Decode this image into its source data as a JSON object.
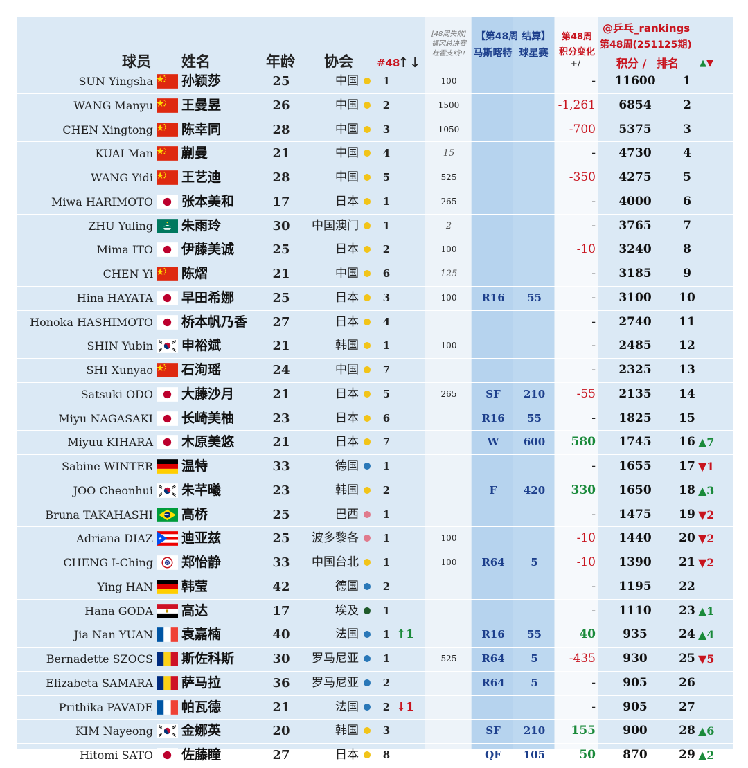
{
  "headers": {
    "player": "球员",
    "name": "姓名",
    "age": "年龄",
    "assoc": "协会",
    "week_rank": "#48",
    "week_arrows": "↑↓",
    "lost_note_1": "[48周失效]",
    "lost_note_2": "福冈总决赛",
    "lost_note_3": "杜霍支线!!",
    "settle_title": "【第48周 结算】",
    "event_1": "马斯喀特",
    "event_2": "球星赛",
    "change_1": "第48周",
    "change_2": "积分变化",
    "change_3": "+/-",
    "handle": "@乒乓_rankings",
    "period": "第48周(251125期)",
    "points": "积分 /",
    "rank": "排名",
    "move_arrows": "▲▼"
  },
  "colors": {
    "gold": "#f2c418",
    "blue": "#2a78b8",
    "pink": "#e07a8c",
    "green": "#1f5a2a",
    "up": "#1a8a3a",
    "down": "#c8141e"
  },
  "players": [
    {
      "en": "SUN Yingsha",
      "flag": "china-flag",
      "cn": "孙颖莎",
      "age": "25",
      "assoc": "中国",
      "dot": "gold",
      "wk": "1",
      "arr": "",
      "prev": "100",
      "prev_it": false,
      "mr": "",
      "mp": "",
      "chg": "-",
      "chg_t": "dash",
      "pts": "11600",
      "rank": "1",
      "mv": ""
    },
    {
      "en": "WANG Manyu",
      "flag": "china-flag",
      "cn": "王曼昱",
      "age": "26",
      "assoc": "中国",
      "dot": "gold",
      "wk": "2",
      "arr": "",
      "prev": "1500",
      "prev_it": false,
      "mr": "",
      "mp": "",
      "chg": "-1,261",
      "chg_t": "neg",
      "pts": "6854",
      "rank": "2",
      "mv": ""
    },
    {
      "en": "CHEN Xingtong",
      "flag": "china-flag",
      "cn": "陈幸同",
      "age": "28",
      "assoc": "中国",
      "dot": "gold",
      "wk": "3",
      "arr": "",
      "prev": "1050",
      "prev_it": false,
      "mr": "",
      "mp": "",
      "chg": "-700",
      "chg_t": "neg",
      "pts": "5375",
      "rank": "3",
      "mv": ""
    },
    {
      "en": "KUAI Man",
      "flag": "china-flag",
      "cn": "蒯曼",
      "age": "21",
      "assoc": "中国",
      "dot": "gold",
      "wk": "4",
      "arr": "",
      "prev": "15",
      "prev_it": true,
      "mr": "",
      "mp": "",
      "chg": "-",
      "chg_t": "dash",
      "pts": "4730",
      "rank": "4",
      "mv": ""
    },
    {
      "en": "WANG Yidi",
      "flag": "china-flag",
      "cn": "王艺迪",
      "age": "28",
      "assoc": "中国",
      "dot": "gold",
      "wk": "5",
      "arr": "",
      "prev": "525",
      "prev_it": false,
      "mr": "",
      "mp": "",
      "chg": "-350",
      "chg_t": "neg",
      "pts": "4275",
      "rank": "5",
      "mv": ""
    },
    {
      "en": "Miwa HARIMOTO",
      "flag": "japan-flag",
      "cn": "张本美和",
      "age": "17",
      "assoc": "日本",
      "dot": "gold",
      "wk": "1",
      "arr": "",
      "prev": "265",
      "prev_it": false,
      "mr": "",
      "mp": "",
      "chg": "-",
      "chg_t": "dash",
      "pts": "4000",
      "rank": "6",
      "mv": ""
    },
    {
      "en": "ZHU Yuling",
      "flag": "macau-flag",
      "cn": "朱雨玲",
      "age": "30",
      "assoc": "中国澳门",
      "dot": "gold",
      "wk": "1",
      "arr": "",
      "prev": "2",
      "prev_it": true,
      "mr": "",
      "mp": "",
      "chg": "-",
      "chg_t": "dash",
      "pts": "3765",
      "rank": "7",
      "mv": ""
    },
    {
      "en": "Mima ITO",
      "flag": "japan-flag",
      "cn": "伊藤美诚",
      "age": "25",
      "assoc": "日本",
      "dot": "gold",
      "wk": "2",
      "arr": "",
      "prev": "100",
      "prev_it": false,
      "mr": "",
      "mp": "",
      "chg": "-10",
      "chg_t": "neg",
      "pts": "3240",
      "rank": "8",
      "mv": ""
    },
    {
      "en": "CHEN Yi",
      "flag": "china-flag",
      "cn": "陈熠",
      "age": "21",
      "assoc": "中国",
      "dot": "gold",
      "wk": "6",
      "arr": "",
      "prev": "125",
      "prev_it": true,
      "mr": "",
      "mp": "",
      "chg": "-",
      "chg_t": "dash",
      "pts": "3185",
      "rank": "9",
      "mv": ""
    },
    {
      "en": "Hina HAYATA",
      "flag": "japan-flag",
      "cn": "早田希娜",
      "age": "25",
      "assoc": "日本",
      "dot": "gold",
      "wk": "3",
      "arr": "",
      "prev": "100",
      "prev_it": false,
      "mr": "R16",
      "mp": "55",
      "chg": "-",
      "chg_t": "dash",
      "pts": "3100",
      "rank": "10",
      "mv": ""
    },
    {
      "en": "Honoka HASHIMOTO",
      "flag": "japan-flag",
      "cn": "桥本帆乃香",
      "age": "27",
      "assoc": "日本",
      "dot": "gold",
      "wk": "4",
      "arr": "",
      "prev": "",
      "prev_it": false,
      "mr": "",
      "mp": "",
      "chg": "-",
      "chg_t": "dash",
      "pts": "2740",
      "rank": "11",
      "mv": ""
    },
    {
      "en": "SHIN Yubin",
      "flag": "korea-flag",
      "cn": "申裕斌",
      "age": "21",
      "assoc": "韩国",
      "dot": "gold",
      "wk": "1",
      "arr": "",
      "prev": "100",
      "prev_it": false,
      "mr": "",
      "mp": "",
      "chg": "-",
      "chg_t": "dash",
      "pts": "2485",
      "rank": "12",
      "mv": ""
    },
    {
      "en": "SHI Xunyao",
      "flag": "china-flag",
      "cn": "石洵瑶",
      "age": "24",
      "assoc": "中国",
      "dot": "gold",
      "wk": "7",
      "arr": "",
      "prev": "",
      "prev_it": false,
      "mr": "",
      "mp": "",
      "chg": "-",
      "chg_t": "dash",
      "pts": "2325",
      "rank": "13",
      "mv": ""
    },
    {
      "en": "Satsuki ODO",
      "flag": "japan-flag",
      "cn": "大藤沙月",
      "age": "21",
      "assoc": "日本",
      "dot": "gold",
      "wk": "5",
      "arr": "",
      "prev": "265",
      "prev_it": false,
      "mr": "SF",
      "mp": "210",
      "chg": "-55",
      "chg_t": "neg",
      "pts": "2135",
      "rank": "14",
      "mv": ""
    },
    {
      "en": "Miyu NAGASAKI",
      "flag": "japan-flag",
      "cn": "长崎美柚",
      "age": "23",
      "assoc": "日本",
      "dot": "gold",
      "wk": "6",
      "arr": "",
      "prev": "",
      "prev_it": false,
      "mr": "R16",
      "mp": "55",
      "chg": "-",
      "chg_t": "dash",
      "pts": "1825",
      "rank": "15",
      "mv": ""
    },
    {
      "en": "Miyuu KIHARA",
      "flag": "japan-flag",
      "cn": "木原美悠",
      "age": "21",
      "assoc": "日本",
      "dot": "gold",
      "wk": "7",
      "arr": "",
      "prev": "",
      "prev_it": false,
      "mr": "W",
      "mp": "600",
      "chg": "580",
      "chg_t": "pos",
      "pts": "1745",
      "rank": "16",
      "mv": "▲7"
    },
    {
      "en": "Sabine WINTER",
      "flag": "germany-flag",
      "cn": "温特",
      "age": "33",
      "assoc": "德国",
      "dot": "blue",
      "wk": "1",
      "arr": "",
      "prev": "",
      "prev_it": false,
      "mr": "",
      "mp": "",
      "chg": "-",
      "chg_t": "dash",
      "pts": "1655",
      "rank": "17",
      "mv": "▼1"
    },
    {
      "en": "JOO Cheonhui",
      "flag": "korea-flag",
      "cn": "朱芊曦",
      "age": "23",
      "assoc": "韩国",
      "dot": "gold",
      "wk": "2",
      "arr": "",
      "prev": "",
      "prev_it": false,
      "mr": "F",
      "mp": "420",
      "chg": "330",
      "chg_t": "pos",
      "pts": "1650",
      "rank": "18",
      "mv": "▲3"
    },
    {
      "en": "Bruna TAKAHASHI",
      "flag": "brazil-flag",
      "cn": "高桥",
      "age": "25",
      "assoc": "巴西",
      "dot": "pink",
      "wk": "1",
      "arr": "",
      "prev": "",
      "prev_it": false,
      "mr": "",
      "mp": "",
      "chg": "-",
      "chg_t": "dash",
      "pts": "1475",
      "rank": "19",
      "mv": "▼2"
    },
    {
      "en": "Adriana DIAZ",
      "flag": "puerto-rico-flag",
      "cn": "迪亚兹",
      "age": "25",
      "assoc": "波多黎各",
      "dot": "pink",
      "wk": "1",
      "arr": "",
      "prev": "100",
      "prev_it": false,
      "mr": "",
      "mp": "",
      "chg": "-10",
      "chg_t": "neg",
      "pts": "1440",
      "rank": "20",
      "mv": "▼2"
    },
    {
      "en": "CHENG I-Ching",
      "flag": "chinese-taipei-flag",
      "cn": "郑怡静",
      "age": "33",
      "assoc": "中国台北",
      "dot": "gold",
      "wk": "1",
      "arr": "",
      "prev": "100",
      "prev_it": false,
      "mr": "R64",
      "mp": "5",
      "chg": "-10",
      "chg_t": "neg",
      "pts": "1390",
      "rank": "21",
      "mv": "▼2"
    },
    {
      "en": "Ying HAN",
      "flag": "germany-flag",
      "cn": "韩莹",
      "age": "42",
      "assoc": "德国",
      "dot": "blue",
      "wk": "2",
      "arr": "",
      "prev": "",
      "prev_it": false,
      "mr": "",
      "mp": "",
      "chg": "-",
      "chg_t": "dash",
      "pts": "1195",
      "rank": "22",
      "mv": ""
    },
    {
      "en": "Hana GODA",
      "flag": "egypt-flag",
      "cn": "高达",
      "age": "17",
      "assoc": "埃及",
      "dot": "green",
      "wk": "1",
      "arr": "",
      "prev": "",
      "prev_it": false,
      "mr": "",
      "mp": "",
      "chg": "-",
      "chg_t": "dash",
      "pts": "1110",
      "rank": "23",
      "mv": "▲1"
    },
    {
      "en": "Jia Nan YUAN",
      "flag": "france-flag",
      "cn": "袁嘉楠",
      "age": "40",
      "assoc": "法国",
      "dot": "blue",
      "wk": "1",
      "arr": "↑1",
      "prev": "",
      "prev_it": false,
      "mr": "R16",
      "mp": "55",
      "chg": "40",
      "chg_t": "pos",
      "pts": "935",
      "rank": "24",
      "mv": "▲4"
    },
    {
      "en": "Bernadette SZOCS",
      "flag": "romania-flag",
      "cn": "斯佐科斯",
      "age": "30",
      "assoc": "罗马尼亚",
      "dot": "blue",
      "wk": "1",
      "arr": "",
      "prev": "525",
      "prev_it": false,
      "mr": "R64",
      "mp": "5",
      "chg": "-435",
      "chg_t": "neg",
      "pts": "930",
      "rank": "25",
      "mv": "▼5"
    },
    {
      "en": "Elizabeta SAMARA",
      "flag": "romania-flag",
      "cn": "萨马拉",
      "age": "36",
      "assoc": "罗马尼亚",
      "dot": "blue",
      "wk": "2",
      "arr": "",
      "prev": "",
      "prev_it": false,
      "mr": "R64",
      "mp": "5",
      "chg": "-",
      "chg_t": "dash",
      "pts": "905",
      "rank": "26",
      "mv": ""
    },
    {
      "en": "Prithika PAVADE",
      "flag": "france-flag",
      "cn": "帕瓦德",
      "age": "21",
      "assoc": "法国",
      "dot": "blue",
      "wk": "2",
      "arr": "↓1",
      "prev": "",
      "prev_it": false,
      "mr": "",
      "mp": "",
      "chg": "-",
      "chg_t": "dash",
      "pts": "905",
      "rank": "27",
      "mv": ""
    },
    {
      "en": "KIM Nayeong",
      "flag": "korea-flag",
      "cn": "金娜英",
      "age": "20",
      "assoc": "韩国",
      "dot": "gold",
      "wk": "3",
      "arr": "",
      "prev": "",
      "prev_it": false,
      "mr": "SF",
      "mp": "210",
      "chg": "155",
      "chg_t": "pos",
      "pts": "900",
      "rank": "28",
      "mv": "▲6"
    },
    {
      "en": "Hitomi SATO",
      "flag": "japan-flag",
      "cn": "佐藤瞳",
      "age": "27",
      "assoc": "日本",
      "dot": "gold",
      "wk": "8",
      "arr": "",
      "prev": "",
      "prev_it": false,
      "mr": "QF",
      "mp": "105",
      "chg": "50",
      "chg_t": "pos",
      "pts": "870",
      "rank": "29",
      "mv": "▲2"
    }
  ]
}
